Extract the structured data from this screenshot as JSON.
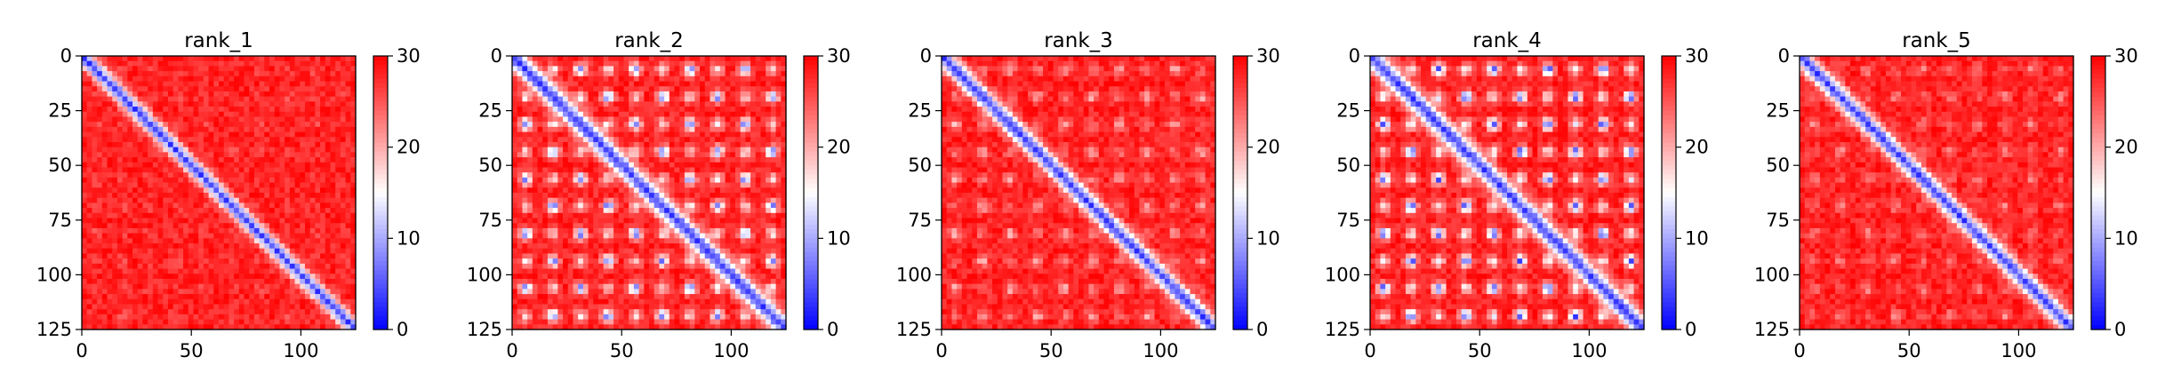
{
  "figure": {
    "panels": [
      {
        "title": "rank_1",
        "pattern": "diagonal"
      },
      {
        "title": "rank_2",
        "pattern": "strong-offdiag"
      },
      {
        "title": "rank_3",
        "pattern": "weak-offdiag"
      },
      {
        "title": "rank_4",
        "pattern": "very-strong-offdiag"
      },
      {
        "title": "rank_5",
        "pattern": "mild-offdiag"
      }
    ]
  },
  "chart_data": {
    "type": "heatmap",
    "colormap": "bwr",
    "colors": {
      "low": "#0000ff",
      "mid": "#ffffff",
      "high": "#ff0000"
    },
    "n": 125,
    "xlim": [
      0,
      125
    ],
    "ylim": [
      125,
      0
    ],
    "xticks": [
      "0",
      "50",
      "100"
    ],
    "yticks": [
      "0",
      "25",
      "50",
      "75",
      "100",
      "125"
    ],
    "colorbar": {
      "range": [
        0,
        30
      ],
      "ticks": [
        "0",
        "10",
        "20",
        "30"
      ]
    },
    "panels": [
      {
        "title": "rank_1",
        "diag_width": 3.5,
        "offdiag_intensity": 0.1
      },
      {
        "title": "rank_2",
        "diag_width": 4.5,
        "offdiag_intensity": 0.9
      },
      {
        "title": "rank_3",
        "diag_width": 4.0,
        "offdiag_intensity": 0.35
      },
      {
        "title": "rank_4",
        "diag_width": 4.5,
        "offdiag_intensity": 1.0
      },
      {
        "title": "rank_5",
        "diag_width": 4.0,
        "offdiag_intensity": 0.25
      }
    ]
  }
}
